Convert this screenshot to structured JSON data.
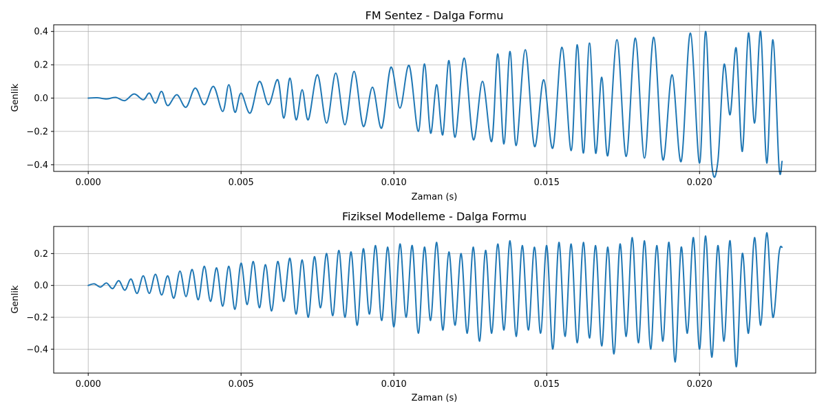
{
  "chart_data": [
    {
      "type": "line",
      "title": "FM Sentez - Dalga Formu",
      "xlabel": "Zaman (s)",
      "ylabel": "Genlik",
      "xlim": [
        -0.00113,
        0.0238
      ],
      "ylim": [
        -0.44,
        0.44
      ],
      "xticks": [
        0.0,
        0.005,
        0.01,
        0.015,
        0.02
      ],
      "xtick_labels": [
        "0.000",
        "0.005",
        "0.010",
        "0.015",
        "0.020"
      ],
      "yticks": [
        -0.4,
        -0.2,
        0.0,
        0.2,
        0.4
      ],
      "ytick_labels": [
        "−0.4",
        "−0.2",
        "0.0",
        "0.2",
        "0.4"
      ],
      "grid": true,
      "color": "#1f77b4",
      "series": [
        {
          "x": [
            0.0,
            0.0003,
            0.0006,
            0.0009,
            0.0012,
            0.0015,
            0.0018,
            0.002,
            0.0022,
            0.0024,
            0.0026,
            0.0029,
            0.0032,
            0.0035,
            0.0038,
            0.0041,
            0.0044,
            0.0046,
            0.0048,
            0.005,
            0.0053,
            0.0056,
            0.0059,
            0.0062,
            0.0064,
            0.0066,
            0.0068,
            0.007,
            0.0072,
            0.0075,
            0.0078,
            0.0081,
            0.0084,
            0.0087,
            0.009,
            0.0093,
            0.0096,
            0.0099,
            0.0102,
            0.0105,
            0.0108,
            0.011,
            0.0112,
            0.0114,
            0.0116,
            0.0118,
            0.012,
            0.0123,
            0.0126,
            0.0129,
            0.0132,
            0.0134,
            0.0136,
            0.0138,
            0.014,
            0.0143,
            0.0146,
            0.0149,
            0.0152,
            0.0155,
            0.0158,
            0.016,
            0.0162,
            0.0164,
            0.0166,
            0.0168,
            0.017,
            0.0173,
            0.0176,
            0.0179,
            0.0182,
            0.0185,
            0.0188,
            0.0191,
            0.0194,
            0.0197,
            0.02,
            0.0202,
            0.0204,
            0.0206,
            0.0208,
            0.021,
            0.0212,
            0.0214,
            0.0216,
            0.0218,
            0.022,
            0.0222,
            0.0224,
            0.0226,
            0.0227
          ],
          "values": [
            0.0,
            0.002,
            -0.005,
            0.004,
            -0.015,
            0.025,
            -0.01,
            0.03,
            -0.03,
            0.04,
            -0.045,
            0.02,
            -0.055,
            0.06,
            -0.04,
            0.07,
            -0.08,
            0.08,
            -0.085,
            0.03,
            -0.09,
            0.1,
            -0.04,
            0.11,
            -0.12,
            0.12,
            -0.13,
            0.05,
            -0.13,
            0.14,
            -0.15,
            0.15,
            -0.16,
            0.16,
            -0.17,
            0.065,
            -0.18,
            0.185,
            -0.06,
            0.195,
            -0.2,
            0.205,
            -0.21,
            0.08,
            -0.22,
            0.225,
            -0.235,
            0.24,
            -0.25,
            0.1,
            -0.26,
            0.265,
            -0.275,
            0.28,
            -0.285,
            0.29,
            -0.29,
            0.11,
            -0.3,
            0.305,
            -0.315,
            0.32,
            -0.33,
            0.33,
            -0.33,
            0.125,
            -0.345,
            0.35,
            -0.35,
            0.36,
            -0.36,
            0.365,
            -0.37,
            0.14,
            -0.38,
            0.39,
            -0.39,
            0.4,
            -0.395,
            -0.38,
            0.2,
            -0.1,
            0.3,
            -0.32,
            0.39,
            -0.15,
            0.4,
            -0.39,
            0.35,
            -0.41,
            -0.38
          ]
        }
      ]
    },
    {
      "type": "line",
      "title": "Fiziksel Modelleme - Dalga Formu",
      "xlabel": "Zaman (s)",
      "ylabel": "Genlik",
      "xlim": [
        -0.00113,
        0.0238
      ],
      "ylim": [
        -0.55,
        0.37
      ],
      "xticks": [
        0.0,
        0.005,
        0.01,
        0.015,
        0.02
      ],
      "xtick_labels": [
        "0.000",
        "0.005",
        "0.010",
        "0.015",
        "0.020"
      ],
      "yticks": [
        -0.4,
        -0.2,
        0.0,
        0.2
      ],
      "ytick_labels": [
        "−0.4",
        "−0.2",
        "0.0",
        "0.2"
      ],
      "grid": true,
      "color": "#1f77b4",
      "series": [
        {
          "x": [
            0.0,
            0.0002,
            0.0004,
            0.0006,
            0.0008,
            0.001,
            0.0012,
            0.0014,
            0.0016,
            0.0018,
            0.002,
            0.0022,
            0.0024,
            0.0026,
            0.0028,
            0.003,
            0.0032,
            0.0034,
            0.0036,
            0.0038,
            0.004,
            0.0042,
            0.0044,
            0.0046,
            0.0048,
            0.005,
            0.0052,
            0.0054,
            0.0056,
            0.0058,
            0.006,
            0.0062,
            0.0064,
            0.0066,
            0.0068,
            0.007,
            0.0072,
            0.0074,
            0.0076,
            0.0078,
            0.008,
            0.0082,
            0.0084,
            0.0086,
            0.0088,
            0.009,
            0.0092,
            0.0094,
            0.0096,
            0.0098,
            0.01,
            0.0102,
            0.0104,
            0.0106,
            0.0108,
            0.011,
            0.0112,
            0.0114,
            0.0116,
            0.0118,
            0.012,
            0.0122,
            0.0124,
            0.0126,
            0.0128,
            0.013,
            0.0132,
            0.0134,
            0.0136,
            0.0138,
            0.014,
            0.0142,
            0.0144,
            0.0146,
            0.0148,
            0.015,
            0.0152,
            0.0154,
            0.0156,
            0.0158,
            0.016,
            0.0162,
            0.0164,
            0.0166,
            0.0168,
            0.017,
            0.0172,
            0.0174,
            0.0176,
            0.0178,
            0.018,
            0.0182,
            0.0184,
            0.0186,
            0.0188,
            0.019,
            0.0192,
            0.0194,
            0.0196,
            0.0198,
            0.02,
            0.0202,
            0.0204,
            0.0206,
            0.0208,
            0.021,
            0.0212,
            0.0214,
            0.0216,
            0.0218,
            0.022,
            0.0222,
            0.0224,
            0.0226,
            0.0227
          ],
          "values": [
            0.0,
            0.01,
            -0.01,
            0.015,
            -0.02,
            0.03,
            -0.03,
            0.04,
            -0.05,
            0.06,
            -0.05,
            0.07,
            -0.06,
            0.06,
            -0.08,
            0.09,
            -0.07,
            0.1,
            -0.09,
            0.12,
            -0.1,
            0.11,
            -0.13,
            0.12,
            -0.15,
            0.14,
            -0.12,
            0.15,
            -0.14,
            0.13,
            -0.16,
            0.15,
            -0.1,
            0.17,
            -0.18,
            0.16,
            -0.2,
            0.18,
            -0.14,
            0.2,
            -0.19,
            0.22,
            -0.2,
            0.21,
            -0.25,
            0.23,
            -0.18,
            0.25,
            -0.22,
            0.24,
            -0.26,
            0.26,
            -0.2,
            0.25,
            -0.3,
            0.24,
            -0.22,
            0.27,
            -0.28,
            0.21,
            -0.25,
            0.2,
            -0.3,
            0.24,
            -0.35,
            0.22,
            -0.3,
            0.26,
            -0.28,
            0.28,
            -0.32,
            0.25,
            -0.28,
            0.24,
            -0.3,
            0.25,
            -0.4,
            0.27,
            -0.32,
            0.26,
            -0.36,
            0.27,
            -0.33,
            0.25,
            -0.38,
            0.24,
            -0.43,
            0.26,
            -0.32,
            0.3,
            -0.36,
            0.28,
            -0.4,
            0.25,
            -0.35,
            0.27,
            -0.48,
            0.24,
            -0.3,
            0.3,
            -0.4,
            0.31,
            -0.45,
            0.25,
            -0.35,
            0.28,
            -0.51,
            0.2,
            -0.3,
            0.3,
            -0.25,
            0.33,
            -0.2,
            0.2,
            0.24
          ]
        }
      ]
    }
  ]
}
